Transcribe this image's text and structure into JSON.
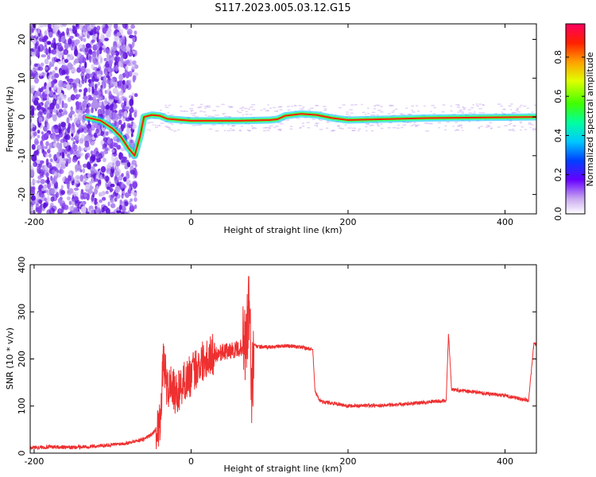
{
  "title": "S117.2023.005.03.12.G15",
  "chart_data": [
    {
      "type": "heatmap",
      "xlabel": "Height of straight line (km)",
      "ylabel": "Frequency (Hz)",
      "xlim": [
        -205,
        440
      ],
      "ylim": [
        -25,
        24
      ],
      "xticks": [
        -200,
        0,
        200,
        400
      ],
      "yticks": [
        -20,
        -10,
        0,
        10,
        20
      ],
      "colorbar": {
        "label": "Normalized spectral amplitude",
        "range": [
          0,
          0.97
        ],
        "ticks": [
          0.0,
          0.2,
          0.4,
          0.6,
          0.8
        ]
      },
      "ridge": {
        "x": [
          -135,
          -115,
          -100,
          -90,
          -80,
          -72,
          -65,
          -60,
          -50,
          -40,
          -30,
          0,
          30,
          60,
          100,
          110,
          120,
          140,
          160,
          180,
          200,
          300,
          440
        ],
        "frequency": [
          0,
          -1,
          -3,
          -5,
          -8,
          -10,
          -5,
          0,
          0.5,
          0.3,
          -0.5,
          -1,
          -1,
          -1,
          -0.8,
          -0.6,
          0.3,
          0.8,
          0.5,
          -0.3,
          -0.8,
          -0.3,
          0
        ]
      }
    },
    {
      "type": "line",
      "xlabel": "Height of straight line (km)",
      "ylabel": "SNR (10 * v/v)",
      "xlim": [
        -205,
        440
      ],
      "ylim": [
        0,
        400
      ],
      "xticks": [
        -200,
        0,
        200,
        400
      ],
      "yticks": [
        0,
        100,
        200,
        300,
        400
      ],
      "color": "#ee3030",
      "series": [
        {
          "x": [
            -205,
            -180,
            -150,
            -120,
            -100,
            -80,
            -60,
            -50,
            -40,
            -35,
            -30,
            -25,
            -20,
            -10,
            0,
            10,
            20,
            40,
            60,
            70,
            75,
            77,
            80,
            90,
            100,
            120,
            140,
            155,
            158,
            165,
            200,
            250,
            300,
            325,
            328,
            332,
            360,
            400,
            430,
            437,
            440
          ],
          "y": [
            12,
            13,
            12,
            15,
            18,
            22,
            30,
            40,
            60,
            200,
            130,
            150,
            120,
            150,
            165,
            190,
            205,
            215,
            220,
            230,
            330,
            100,
            228,
            225,
            225,
            228,
            225,
            220,
            130,
            110,
            100,
            102,
            108,
            112,
            255,
            135,
            130,
            122,
            112,
            235,
            230
          ]
        }
      ]
    }
  ]
}
